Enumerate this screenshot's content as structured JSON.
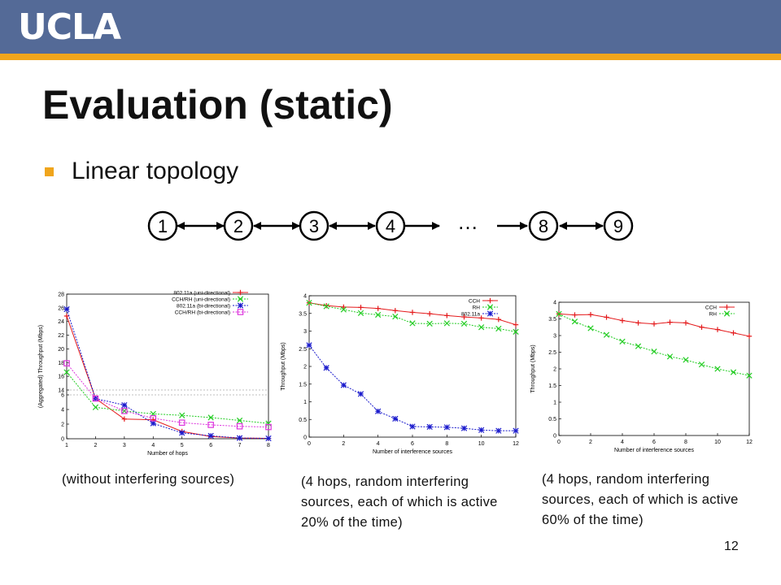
{
  "header": {
    "logo": "UCLA"
  },
  "slide": {
    "title": "Evaluation (static)",
    "bullet": "Linear topology",
    "page_number": "12"
  },
  "topology": {
    "nodes": [
      "1",
      "2",
      "3",
      "4",
      "8",
      "9"
    ],
    "ellipsis": "…"
  },
  "captions": [
    "(without interfering sources)",
    "(4 hops, random interfering sources, each of which is active 20% of the time)",
    "(4 hops, random interfering sources, each of which is active 60% of the time)"
  ],
  "colors": {
    "banner": "#546a97",
    "stripe": "#f0a51c",
    "red": "#e41a1c",
    "green": "#22cc22",
    "blue": "#1a1acc",
    "magenta": "#dd33dd"
  },
  "chart_data": [
    {
      "type": "line",
      "xlabel": "Number of hops",
      "ylabel": "(Aggregated) Throughput (Mbps)",
      "x": [
        1,
        2,
        3,
        4,
        5,
        6,
        7,
        8
      ],
      "xlim": [
        1,
        8
      ],
      "ylim_lower": [
        0,
        6
      ],
      "ylim_upper": [
        14,
        28
      ],
      "yticks": [
        0,
        2,
        4,
        6,
        14,
        16,
        18,
        20,
        22,
        24,
        26,
        28
      ],
      "grid": false,
      "legend_position": "top-right",
      "series": [
        {
          "name": "802.11a (uni-directional)",
          "color": "red",
          "marker": "plus",
          "values": [
            24.8,
            5.5,
            2.7,
            2.6,
            1.0,
            0.3,
            0.1,
            0.05
          ]
        },
        {
          "name": "CCH/RH (uni-directional)",
          "color": "green",
          "marker": "x",
          "values": [
            16.6,
            4.3,
            3.8,
            3.4,
            3.2,
            2.9,
            2.5,
            2.1
          ]
        },
        {
          "name": "802.11a (bi-directional)",
          "color": "blue",
          "marker": "star",
          "values": [
            25.8,
            5.5,
            4.6,
            2.1,
            0.8,
            0.4,
            0.1,
            0.05
          ]
        },
        {
          "name": "CCH/RH (bi-directional)",
          "color": "magenta",
          "marker": "square",
          "values": [
            17.9,
            5.5,
            3.8,
            2.8,
            2.2,
            1.9,
            1.7,
            1.6
          ]
        }
      ]
    },
    {
      "type": "line",
      "xlabel": "Number of interference sources",
      "ylabel": "Throughput (Mbps)",
      "x": [
        0,
        1,
        2,
        3,
        4,
        5,
        6,
        7,
        8,
        9,
        10,
        11,
        12
      ],
      "xlim": [
        0,
        12
      ],
      "ylim": [
        0,
        4
      ],
      "xticks": [
        0,
        2,
        4,
        6,
        8,
        10,
        12
      ],
      "yticks": [
        0,
        0.5,
        1,
        1.5,
        2,
        2.5,
        3,
        3.5,
        4
      ],
      "grid": false,
      "legend_position": "top-right",
      "series": [
        {
          "name": "CCH",
          "color": "red",
          "marker": "plus",
          "values": [
            3.8,
            3.72,
            3.68,
            3.67,
            3.64,
            3.58,
            3.53,
            3.49,
            3.44,
            3.4,
            3.37,
            3.33,
            3.18
          ]
        },
        {
          "name": "RH",
          "color": "green",
          "marker": "x",
          "values": [
            3.8,
            3.7,
            3.61,
            3.51,
            3.46,
            3.41,
            3.22,
            3.21,
            3.22,
            3.21,
            3.11,
            3.07,
            2.98
          ]
        },
        {
          "name": "802.11a",
          "color": "blue",
          "marker": "star",
          "values": [
            2.6,
            1.96,
            1.47,
            1.22,
            0.73,
            0.52,
            0.3,
            0.29,
            0.28,
            0.25,
            0.2,
            0.18,
            0.18
          ]
        }
      ]
    },
    {
      "type": "line",
      "xlabel": "Number of interference sources",
      "ylabel": "Throughput (Mbps)",
      "x": [
        0,
        1,
        2,
        3,
        4,
        5,
        6,
        7,
        8,
        9,
        10,
        11,
        12
      ],
      "xlim": [
        0,
        12
      ],
      "ylim": [
        0,
        4
      ],
      "xticks": [
        0,
        2,
        4,
        6,
        8,
        10,
        12
      ],
      "yticks": [
        0,
        0.5,
        1,
        1.5,
        2,
        2.5,
        3,
        3.5,
        4
      ],
      "grid": false,
      "legend_position": "top-right",
      "series": [
        {
          "name": "CCH",
          "color": "red",
          "marker": "plus",
          "values": [
            3.65,
            3.62,
            3.63,
            3.55,
            3.45,
            3.38,
            3.35,
            3.4,
            3.38,
            3.25,
            3.18,
            3.08,
            2.98
          ]
        },
        {
          "name": "RH",
          "color": "green",
          "marker": "x",
          "values": [
            3.65,
            3.42,
            3.22,
            3.02,
            2.82,
            2.68,
            2.52,
            2.37,
            2.27,
            2.13,
            2.0,
            1.9,
            1.8
          ]
        }
      ]
    }
  ]
}
